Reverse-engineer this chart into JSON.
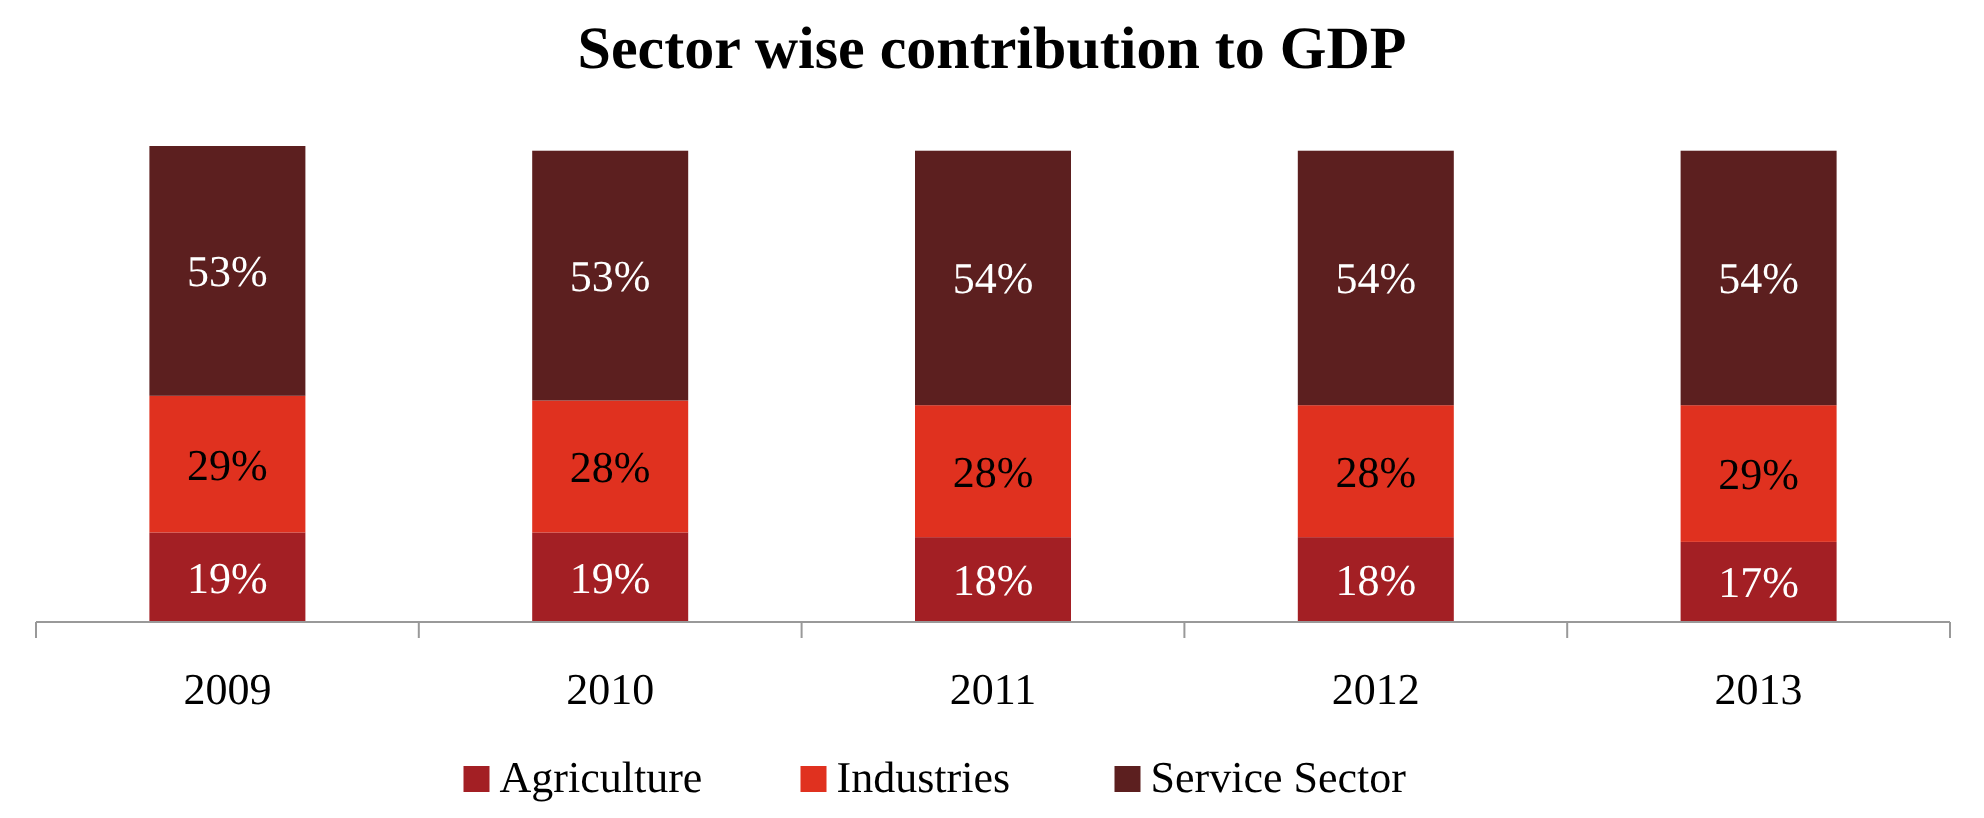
{
  "chart_data": {
    "type": "bar",
    "title": "Sector wise contribution to GDP",
    "categories": [
      "2009",
      "2010",
      "2011",
      "2012",
      "2013"
    ],
    "stacked": true,
    "legend": "bottom",
    "series": [
      {
        "name": "Agriculture",
        "color": "#a31f24",
        "values": [
          19,
          19,
          18,
          18,
          17
        ],
        "value_labels": [
          "19%",
          "19%",
          "18%",
          "18%",
          "17%"
        ]
      },
      {
        "name": "Industries",
        "color": "#e0311f",
        "values": [
          29,
          28,
          28,
          28,
          29
        ],
        "value_labels": [
          "29%",
          "28%",
          "28%",
          "28%",
          "29%"
        ]
      },
      {
        "name": "Service Sector",
        "color": "#5c1f1f",
        "values": [
          53,
          53,
          54,
          54,
          54
        ],
        "value_labels": [
          "53%",
          "53%",
          "54%",
          "54%",
          "54%"
        ]
      }
    ]
  }
}
